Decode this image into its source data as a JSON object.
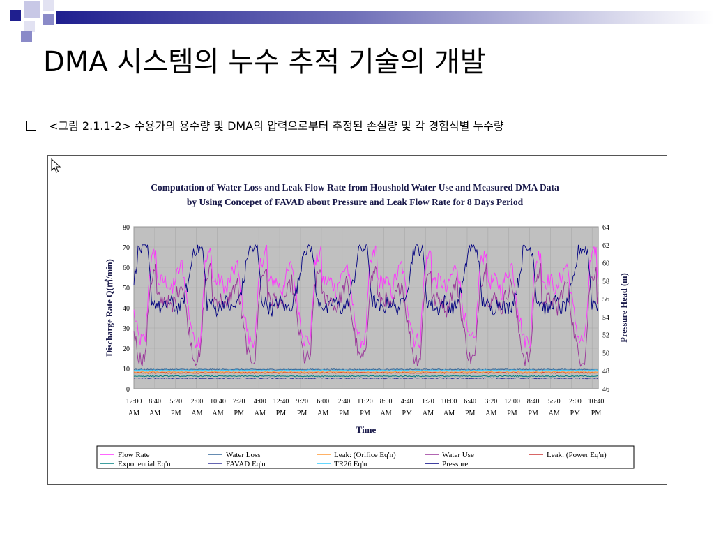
{
  "slide": {
    "title": "DMA 시스템의 누수 추적 기술의 개발",
    "caption": "<그림 2.1.1-2> 수용가의 용수량 및 DMA의 압력으로부터 추정된 손실량 및 각 경험식별 누수량",
    "bullet_icon": "hollow-square-icon",
    "cursor_icon": "mouse-pointer-icon"
  },
  "chart_data": {
    "type": "line",
    "title": "Computation of Water Loss and Leak Flow Rate from Houshold Water Use and Measured DMA Data",
    "subtitle": "by Using Concepet of FAVAD about Pressure and Leak Flow Rate for 8 Days Period",
    "xlabel": "Time",
    "ylabel_left": "Discharge Rate Q(㎥/min)",
    "ylabel_right": "Pressure Head (m)",
    "ylim_left": [
      0,
      80
    ],
    "yticks_left": [
      0,
      10,
      20,
      30,
      40,
      50,
      60,
      70,
      80
    ],
    "ylim_right": [
      46,
      64
    ],
    "yticks_right": [
      46,
      48,
      50,
      52,
      54,
      56,
      58,
      60,
      62,
      64
    ],
    "x_ticks": [
      [
        "12:00",
        "AM"
      ],
      [
        "8:40",
        "AM"
      ],
      [
        "5:20",
        "PM"
      ],
      [
        "2:00",
        "AM"
      ],
      [
        "10:40",
        "AM"
      ],
      [
        "7:20",
        "PM"
      ],
      [
        "4:00",
        "AM"
      ],
      [
        "12:40",
        "PM"
      ],
      [
        "9:20",
        "PM"
      ],
      [
        "6:00",
        "AM"
      ],
      [
        "2:40",
        "PM"
      ],
      [
        "11:20",
        "PM"
      ],
      [
        "8:00",
        "AM"
      ],
      [
        "4:40",
        "PM"
      ],
      [
        "1:20",
        "AM"
      ],
      [
        "10:00",
        "AM"
      ],
      [
        "6:40",
        "PM"
      ],
      [
        "3:20",
        "AM"
      ],
      [
        "12:00",
        "PM"
      ],
      [
        "8:40",
        "PM"
      ],
      [
        "5:20",
        "AM"
      ],
      [
        "2:00",
        "PM"
      ],
      [
        "10:40",
        "PM"
      ]
    ],
    "x_span_hours": 202.67,
    "days": 8,
    "grid": true,
    "plot_background": "#c0c0c0",
    "legend_position": "bottom",
    "series": [
      {
        "name": "Flow Rate",
        "color": "#ff33ff",
        "axis": "left",
        "min": 20,
        "max": 71,
        "profile": "diurnal_demand"
      },
      {
        "name": "Water Loss",
        "color": "#336699",
        "axis": "left",
        "value": 9.5,
        "profile": "flat"
      },
      {
        "name": "Leak: (Orifice Eq'n)",
        "color": "#ff9933",
        "axis": "left",
        "value": 8.2,
        "profile": "flat"
      },
      {
        "name": "Water Use",
        "color": "#993399",
        "axis": "left",
        "min": 11,
        "max": 62,
        "profile": "diurnal_demand"
      },
      {
        "name": "Leak: (Power Eq'n)",
        "color": "#cc3333",
        "axis": "left",
        "value": 7.8,
        "profile": "flat"
      },
      {
        "name": "Exponential Eq'n",
        "color": "#008080",
        "axis": "left",
        "value": 6.2,
        "profile": "flat"
      },
      {
        "name": "FAVAD Eq'n",
        "color": "#333399",
        "axis": "left",
        "value": 5.2,
        "profile": "flat"
      },
      {
        "name": "TR26 Eq'n",
        "color": "#33ccff",
        "axis": "left",
        "value": 9.1,
        "profile": "flat"
      },
      {
        "name": "Pressure",
        "color": "#000080",
        "axis": "right",
        "min": 53,
        "max": 62,
        "profile": "diurnal_pressure"
      }
    ]
  }
}
